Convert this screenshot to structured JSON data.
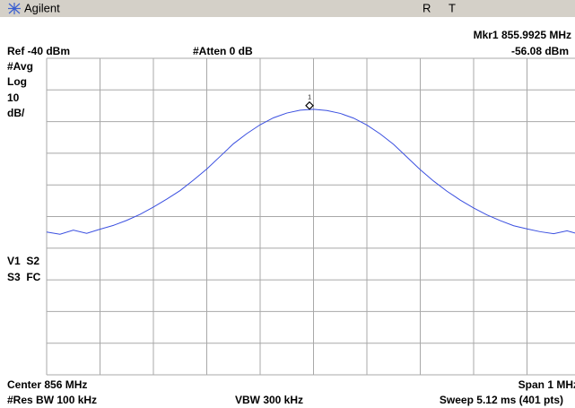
{
  "header": {
    "brand": "Agilent",
    "status": [
      "R",
      "T"
    ]
  },
  "chart_data": {
    "type": "line",
    "readout": {
      "marker": "Mkr1 855.9925 MHz",
      "level": "-56.08 dBm"
    },
    "settings": {
      "ref": "Ref -40 dBm",
      "atten": "#Atten 0 dB",
      "avg": "#Avg",
      "scale": "Log",
      "div": "10",
      "unit": "dB/",
      "v1": "V1  S2",
      "s3": "S3  FC"
    },
    "footer": {
      "center": "Center 856 MHz",
      "span": "Span 1 MHz",
      "rbw": "#Res BW 100 kHz",
      "vbw": "VBW 300 kHz",
      "sweep": "Sweep 5.12 ms (401 pts)"
    },
    "xlim": [
      855.5,
      856.5
    ],
    "ylim": [
      -140,
      -40
    ],
    "xgrid": [
      855.5,
      855.6,
      855.7,
      855.8,
      855.9,
      856.0,
      856.1,
      856.2,
      856.3,
      856.4,
      856.5
    ],
    "ygrid": [
      -40,
      -50,
      -60,
      -70,
      -80,
      -90,
      -100,
      -110,
      -120,
      -130,
      -140
    ],
    "series": [
      {
        "color": "#3a4fe0",
        "x": [
          855.5,
          855.525,
          855.55,
          855.575,
          855.6,
          855.625,
          855.65,
          855.675,
          855.7,
          855.725,
          855.75,
          855.775,
          855.8,
          855.825,
          855.85,
          855.875,
          855.9,
          855.925,
          855.95,
          855.975,
          856.0,
          856.025,
          856.05,
          856.075,
          856.1,
          856.125,
          856.15,
          856.175,
          856.2,
          856.225,
          856.25,
          856.275,
          856.3,
          856.325,
          856.35,
          856.375,
          856.4,
          856.425,
          856.45,
          856.475,
          856.5
        ],
        "values": [
          -94.9,
          -95.6,
          -94.3,
          -95.3,
          -94.0,
          -92.8,
          -91.2,
          -89.3,
          -87.0,
          -84.5,
          -81.8,
          -78.5,
          -75.0,
          -71.0,
          -67.0,
          -63.8,
          -61.0,
          -58.8,
          -57.3,
          -56.4,
          -56.1,
          -56.5,
          -57.4,
          -58.9,
          -61.1,
          -63.9,
          -67.2,
          -71.2,
          -75.2,
          -78.8,
          -82.0,
          -84.8,
          -87.3,
          -89.5,
          -91.3,
          -92.9,
          -93.9,
          -94.8,
          -95.4,
          -94.5,
          -95.7
        ]
      }
    ],
    "marker": {
      "label": "1",
      "x": 855.9925,
      "y": -56.08
    }
  }
}
